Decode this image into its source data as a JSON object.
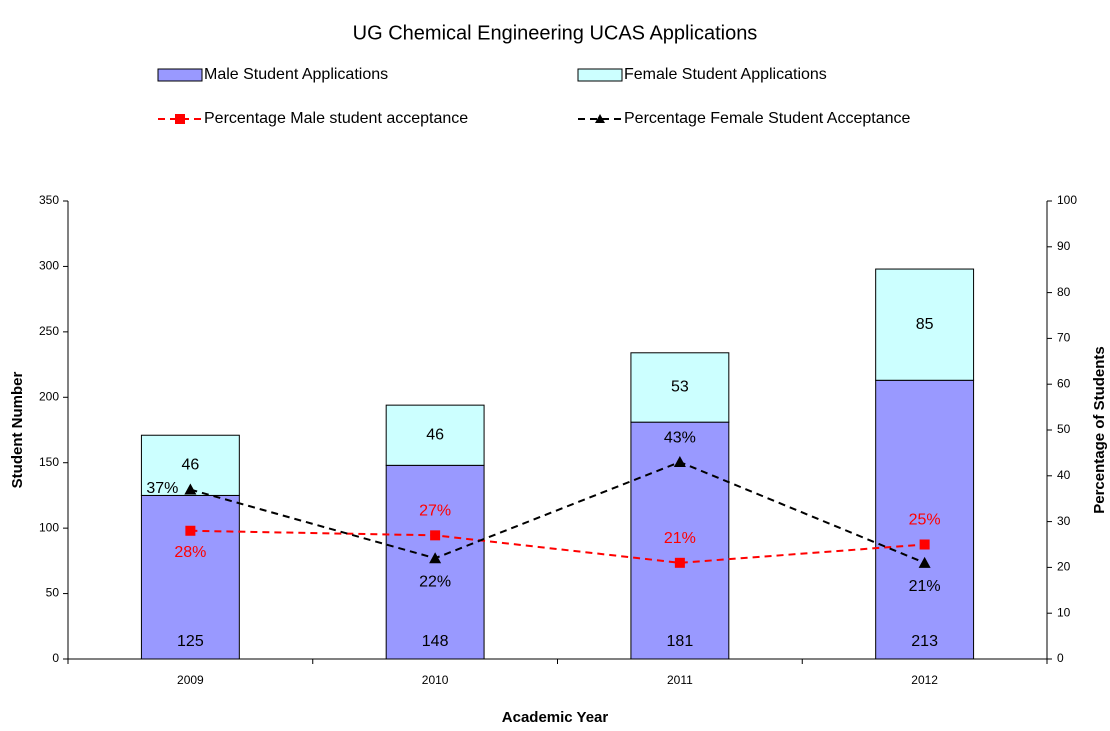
{
  "chart_data": {
    "type": "bar",
    "stacked": true,
    "title": "UG Chemical Engineering UCAS Applications",
    "x_label": "Academic Year",
    "y_label": "Student Number",
    "y2_label": "Percentage of Students",
    "categories": [
      "2009",
      "2010",
      "2011",
      "2012"
    ],
    "ylim": [
      0,
      350
    ],
    "yticks": [
      0,
      50,
      100,
      150,
      200,
      250,
      300,
      350
    ],
    "y2lim": [
      0,
      100
    ],
    "y2ticks": [
      0,
      10,
      20,
      30,
      40,
      50,
      60,
      70,
      80,
      90,
      100
    ],
    "grid": false,
    "series": [
      {
        "name": "Male Student Applications",
        "type": "bar",
        "color": "#9999ff",
        "values": [
          125,
          148,
          181,
          213
        ]
      },
      {
        "name": "Female Student Applications",
        "type": "bar",
        "color": "#ccffff",
        "values": [
          46,
          46,
          53,
          85
        ]
      },
      {
        "name": "Percentage Male student acceptance",
        "type": "line",
        "axis": "y2",
        "color": "#ff0000",
        "marker": "square",
        "dashed": true,
        "values": [
          28,
          27,
          21,
          25
        ],
        "value_labels": [
          "28%",
          "27%",
          "21%",
          "25%"
        ]
      },
      {
        "name": "Percentage Female Student Acceptance",
        "type": "line",
        "axis": "y2",
        "color": "#000000",
        "marker": "triangle",
        "dashed": true,
        "values": [
          37,
          22,
          43,
          21
        ],
        "value_labels": [
          "37%",
          "22%",
          "43%",
          "21%"
        ]
      }
    ]
  }
}
